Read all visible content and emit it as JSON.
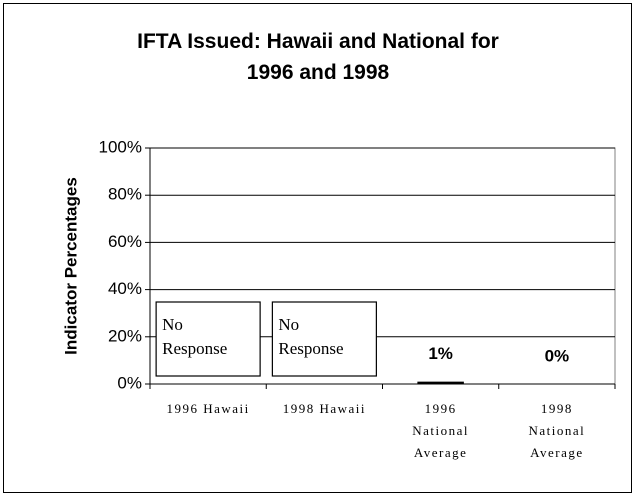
{
  "chart_data": {
    "type": "bar",
    "title": "IFTA Issued: Hawaii and National for\n1996 and 1998",
    "y_label": "Indicator Percentages",
    "categories": [
      "1996 Hawaii",
      "1998 Hawaii",
      "1996\nNational\nAverage",
      "1998\nNational\nAverage"
    ],
    "values": [
      null,
      null,
      1,
      0
    ],
    "value_labels": [
      "No\nResponse",
      "No\nResponse",
      "1%",
      "0%"
    ],
    "color": "#000000",
    "ylim": [
      0,
      100
    ],
    "yticks": [
      {
        "value": 0,
        "label": "0%"
      },
      {
        "value": 20,
        "label": "20%"
      },
      {
        "value": 40,
        "label": "40%"
      },
      {
        "value": 60,
        "label": "60%"
      },
      {
        "value": 80,
        "label": "80%"
      },
      {
        "value": 100,
        "label": "100%"
      }
    ],
    "grid": true
  }
}
